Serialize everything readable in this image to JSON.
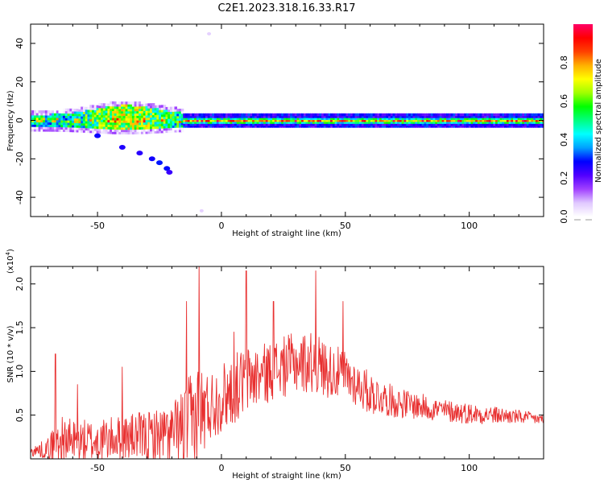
{
  "figure": {
    "title": "C2E1.2023.318.16.33.R17"
  },
  "colors": {
    "snr_line": "#e83030",
    "axes": "#000000",
    "background": "#ffffff",
    "colormap": [
      "#ffffff",
      "#e0c8ff",
      "#a040ff",
      "#5000ff",
      "#0000ff",
      "#00a0ff",
      "#00ffff",
      "#00ff80",
      "#00ff00",
      "#a0ff00",
      "#ffff00",
      "#ffb000",
      "#ff4000",
      "#ff0000",
      "#ff0066"
    ]
  },
  "chart_data": [
    {
      "type": "heatmap",
      "title": "C2E1.2023.318.16.33.R17",
      "xlabel": "Height of straight line (km)",
      "ylabel": "Frequency (Hz)",
      "xlim": [
        -77,
        130
      ],
      "ylim": [
        -50,
        50
      ],
      "xticks": [
        -50,
        0,
        50,
        100
      ],
      "yticks": [
        40,
        20,
        0,
        -20,
        -40
      ],
      "colorbar": {
        "label": "Normalized spectral amplitude",
        "range": [
          0,
          1
        ],
        "ticks": [
          0.0,
          0.2,
          0.4,
          0.6,
          0.8
        ]
      },
      "features": {
        "main_band": {
          "x_range": [
            -77,
            130
          ],
          "center_hz": 0,
          "halfwidth_hz": 2
        },
        "broad_region": {
          "x_range": [
            -77,
            -15
          ],
          "spread_hz": [
            -4,
            8
          ]
        },
        "descending_echo": [
          {
            "x": -50,
            "y": -8
          },
          {
            "x": -40,
            "y": -14
          },
          {
            "x": -33,
            "y": -17
          },
          {
            "x": -28,
            "y": -20
          },
          {
            "x": -25,
            "y": -22
          },
          {
            "x": -22,
            "y": -25
          },
          {
            "x": -21,
            "y": -27
          }
        ],
        "isolated_points": [
          {
            "x": -5,
            "y": 45
          },
          {
            "x": -8,
            "y": -47
          }
        ]
      }
    },
    {
      "type": "line",
      "xlabel": "Height of straight line (km)",
      "ylabel": "SNR (10 * v/v)",
      "yscale_label": "(x10",
      "yscale_exponent": "4",
      "yscale_suffix": ")",
      "xlim": [
        -77,
        130
      ],
      "ylim": [
        0,
        2.2
      ],
      "xticks": [
        -50,
        0,
        50,
        100
      ],
      "yticks": [
        0.5,
        1.0,
        1.5,
        2.0
      ],
      "series": [
        {
          "envelope": {
            "x": [
              -77,
              -70,
              -66,
              -60,
              -50,
              -40,
              -30,
              -20,
              -15,
              -12,
              -10,
              -5,
              0,
              5,
              10,
              15,
              20,
              25,
              30,
              35,
              38,
              40,
              45,
              50,
              55,
              60,
              65,
              70,
              80,
              90,
              100,
              110,
              120,
              130
            ],
            "base": [
              0.08,
              0.12,
              0.2,
              0.2,
              0.2,
              0.25,
              0.25,
              0.28,
              0.35,
              0.4,
              0.45,
              0.6,
              0.7,
              0.8,
              0.9,
              0.95,
              1.0,
              1.05,
              1.1,
              1.1,
              1.1,
              1.05,
              1.0,
              0.95,
              0.85,
              0.75,
              0.7,
              0.65,
              0.6,
              0.55,
              0.52,
              0.5,
              0.48,
              0.45
            ],
            "amplitude": [
              0.05,
              0.12,
              0.3,
              0.25,
              0.25,
              0.25,
              0.3,
              0.35,
              0.5,
              0.6,
              0.7,
              0.4,
              0.4,
              0.4,
              0.4,
              0.35,
              0.35,
              0.35,
              0.35,
              0.35,
              0.35,
              0.35,
              0.3,
              0.3,
              0.25,
              0.25,
              0.2,
              0.18,
              0.15,
              0.13,
              0.12,
              0.1,
              0.08,
              0.06
            ]
          },
          "peaks": [
            {
              "x": -67,
              "y": 1.2
            },
            {
              "x": -58,
              "y": 0.85
            },
            {
              "x": -40,
              "y": 1.05
            },
            {
              "x": -14,
              "y": 1.8
            },
            {
              "x": -9,
              "y": 2.25
            },
            {
              "x": 5,
              "y": 1.45
            },
            {
              "x": 10,
              "y": 2.15
            },
            {
              "x": 21,
              "y": 1.8
            },
            {
              "x": 38,
              "y": 2.15
            },
            {
              "x": 49,
              "y": 1.8
            }
          ]
        }
      ]
    }
  ]
}
